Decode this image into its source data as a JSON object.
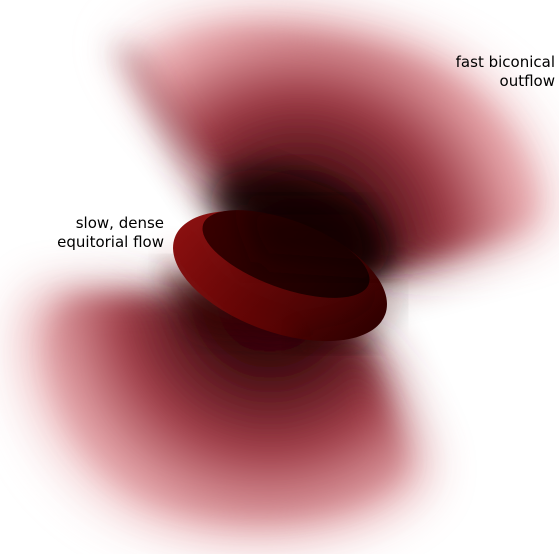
{
  "labels": {
    "outflow": {
      "line1": "fast biconical",
      "line2": "outflow"
    },
    "equatorial": {
      "line1": "slow, dense",
      "line2": "equitorial flow"
    }
  },
  "colors": {
    "background": "#ffffff",
    "cone_outer": "#f7d3d5",
    "cone_mid": "#b94a55",
    "cone_inner": "#1a0204",
    "torus_light": "#8a1010",
    "torus_mid": "#5c0505",
    "torus_dark": "#2a0000",
    "text": "#000000"
  }
}
